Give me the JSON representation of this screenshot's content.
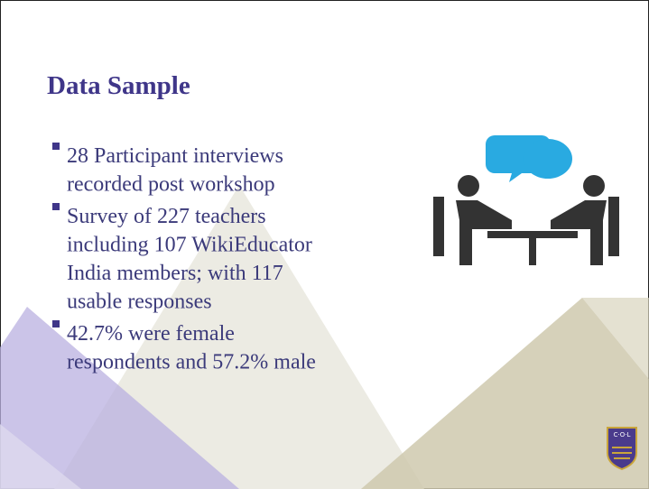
{
  "title": "Data Sample",
  "bullets": [
    [
      "28 Participant interviews",
      "recorded post workshop"
    ],
    [
      "Survey of 227 teachers",
      "including 107 WikiEducator",
      "India members; with 117",
      "usable responses"
    ],
    [
      " 42.7% were female",
      "respondents and 57.2% male"
    ]
  ],
  "logo": {
    "text": "C·O·L"
  }
}
